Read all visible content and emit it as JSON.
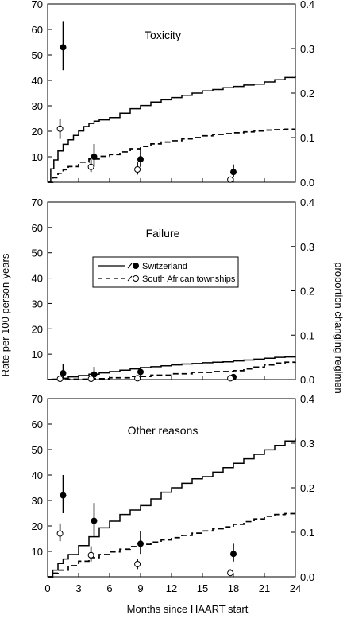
{
  "chart_data": {
    "type": "line",
    "x_label": "Months since HAART start",
    "y_left_label": "Rate per 100 person-years",
    "y_right_label": "proportion changing regimen",
    "x_ticks": [
      0,
      3,
      6,
      9,
      12,
      15,
      18,
      21,
      24
    ],
    "x_range": [
      0,
      24
    ],
    "y_left_ticks": [
      10,
      20,
      30,
      40,
      50,
      60,
      70
    ],
    "y_left_range": [
      0,
      70
    ],
    "y_right_ticks": [
      "0.0",
      "0.1",
      "0.2",
      "0.3",
      "0.4"
    ],
    "y_right_range": [
      0,
      0.4
    ],
    "legend": {
      "placement": "upper-left of middle panel",
      "entries": [
        {
          "label": "Switzerland",
          "line_style": "solid",
          "marker": "filled-circle"
        },
        {
          "label": "South African townships",
          "line_style": "dashed",
          "marker": "open-circle"
        }
      ]
    },
    "panels": [
      {
        "title": "Toxicity",
        "series": [
          {
            "name": "Switzerland",
            "kind": "cumulative-proportion",
            "style": "solid",
            "x": [
              0,
              0.3,
              0.6,
              1,
              1.5,
              2,
              2.5,
              3,
              3.5,
              4,
              4.5,
              5,
              6,
              7,
              8,
              9,
              10,
              11,
              12,
              13,
              14,
              15,
              16,
              17,
              18,
              19,
              20,
              21,
              22,
              23,
              24
            ],
            "y": [
              0,
              0.03,
              0.05,
              0.07,
              0.085,
              0.095,
              0.105,
              0.115,
              0.125,
              0.132,
              0.137,
              0.14,
              0.145,
              0.155,
              0.165,
              0.172,
              0.18,
              0.185,
              0.19,
              0.195,
              0.2,
              0.205,
              0.208,
              0.212,
              0.215,
              0.218,
              0.22,
              0.225,
              0.23,
              0.235,
              0.238
            ]
          },
          {
            "name": "South African townships",
            "kind": "cumulative-proportion",
            "style": "dashed",
            "x": [
              0,
              0.5,
              1,
              1.5,
              2,
              3,
              4,
              5,
              6,
              7,
              8,
              9,
              10,
              11,
              12,
              13,
              14,
              15,
              16,
              17,
              18,
              19,
              20,
              21,
              22,
              23,
              24
            ],
            "y": [
              0,
              0.01,
              0.02,
              0.028,
              0.035,
              0.045,
              0.052,
              0.058,
              0.062,
              0.068,
              0.075,
              0.08,
              0.086,
              0.09,
              0.093,
              0.097,
              0.1,
              0.104,
              0.107,
              0.109,
              0.111,
              0.113,
              0.115,
              0.117,
              0.118,
              0.119,
              0.119
            ]
          },
          {
            "name": "Switzerland",
            "kind": "rate",
            "marker": "filled",
            "x": [
              1.5,
              4.5,
              9,
              18
            ],
            "y": [
              53,
              10,
              9,
              4
            ],
            "lo": [
              44,
              6,
              6,
              2
            ],
            "hi": [
              63,
              15,
              13,
              7
            ]
          },
          {
            "name": "South African townships",
            "kind": "rate",
            "marker": "open",
            "x": [
              1.2,
              4.2,
              8.7,
              17.7
            ],
            "y": [
              21,
              6,
              5,
              1
            ],
            "lo": [
              17,
              4,
              3,
              0
            ],
            "hi": [
              25,
              9,
              8,
              2
            ]
          }
        ]
      },
      {
        "title": "Failure",
        "series": [
          {
            "name": "Switzerland",
            "kind": "cumulative-proportion",
            "style": "solid",
            "x": [
              0,
              0.5,
              1,
              2,
              3,
              4,
              5,
              6,
              7,
              8,
              9,
              10,
              11,
              12,
              13,
              14,
              15,
              16,
              17,
              18,
              19,
              20,
              21,
              22,
              23,
              24
            ],
            "y": [
              0,
              0.001,
              0.003,
              0.006,
              0.009,
              0.012,
              0.015,
              0.018,
              0.021,
              0.024,
              0.027,
              0.029,
              0.031,
              0.033,
              0.035,
              0.036,
              0.038,
              0.039,
              0.04,
              0.042,
              0.044,
              0.046,
              0.048,
              0.05,
              0.051,
              0.052
            ]
          },
          {
            "name": "South African townships",
            "kind": "cumulative-proportion",
            "style": "dashed",
            "x": [
              0,
              2,
              4,
              6,
              8,
              10,
              12,
              14,
              16,
              18,
              19,
              20,
              21,
              22,
              23,
              24
            ],
            "y": [
              0,
              0.001,
              0.002,
              0.004,
              0.007,
              0.01,
              0.013,
              0.016,
              0.018,
              0.02,
              0.024,
              0.028,
              0.033,
              0.037,
              0.039,
              0.04
            ]
          },
          {
            "name": "Switzerland",
            "kind": "rate",
            "marker": "filled",
            "x": [
              1.5,
              4.5,
              9,
              18
            ],
            "y": [
              2.5,
              2,
              3,
              1
            ],
            "lo": [
              0.5,
              0.5,
              1,
              0
            ],
            "hi": [
              6,
              5,
              5,
              2
            ]
          },
          {
            "name": "South African townships",
            "kind": "rate",
            "marker": "open",
            "x": [
              1.2,
              4.2,
              8.7,
              17.7
            ],
            "y": [
              0.3,
              0.3,
              0.5,
              0.5
            ],
            "lo": [
              0,
              0,
              0,
              0
            ],
            "hi": [
              1,
              1,
              1.5,
              1.5
            ]
          }
        ]
      },
      {
        "title": "Other reasons",
        "series": [
          {
            "name": "Switzerland",
            "kind": "cumulative-proportion",
            "style": "solid",
            "x": [
              0,
              0.5,
              1,
              1.5,
              2,
              3,
              4,
              5,
              6,
              7,
              8,
              9,
              10,
              11,
              12,
              13,
              14,
              15,
              16,
              17,
              18,
              19,
              20,
              21,
              22,
              23,
              24
            ],
            "y": [
              0,
              0.015,
              0.03,
              0.04,
              0.05,
              0.07,
              0.09,
              0.11,
              0.125,
              0.14,
              0.15,
              0.16,
              0.175,
              0.19,
              0.2,
              0.21,
              0.22,
              0.225,
              0.235,
              0.245,
              0.255,
              0.265,
              0.275,
              0.285,
              0.295,
              0.305,
              0.31
            ]
          },
          {
            "name": "South African townships",
            "kind": "cumulative-proportion",
            "style": "dashed",
            "x": [
              0,
              0.5,
              1,
              2,
              3,
              4,
              5,
              6,
              7,
              8,
              9,
              10,
              11,
              12,
              13,
              14,
              15,
              16,
              17,
              18,
              19,
              20,
              21,
              22,
              23,
              24
            ],
            "y": [
              0,
              0.008,
              0.015,
              0.025,
              0.035,
              0.043,
              0.05,
              0.056,
              0.062,
              0.068,
              0.073,
              0.078,
              0.083,
              0.088,
              0.093,
              0.098,
              0.103,
              0.108,
              0.112,
              0.118,
              0.124,
              0.13,
              0.136,
              0.14,
              0.142,
              0.142
            ]
          },
          {
            "name": "Switzerland",
            "kind": "rate",
            "marker": "filled",
            "x": [
              1.5,
              4.5,
              9,
              18
            ],
            "y": [
              32,
              22,
              13,
              9
            ],
            "lo": [
              25,
              16,
              9,
              6
            ],
            "hi": [
              40,
              29,
              18,
              13
            ]
          },
          {
            "name": "South African townships",
            "kind": "rate",
            "marker": "open",
            "x": [
              1.2,
              4.2,
              8.7,
              17.7
            ],
            "y": [
              17,
              8.5,
              5,
              1.5
            ],
            "lo": [
              14,
              6,
              3,
              0.5
            ],
            "hi": [
              21,
              12,
              7,
              3
            ]
          }
        ]
      }
    ]
  }
}
